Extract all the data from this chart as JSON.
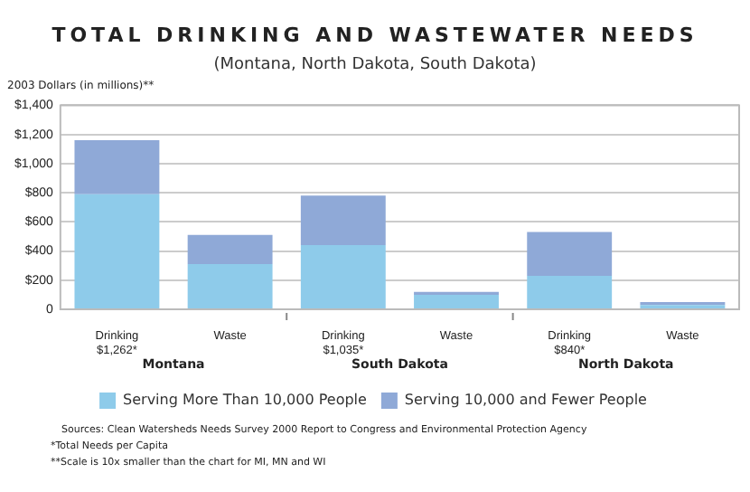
{
  "chart_data": {
    "type": "bar",
    "title": "TOTAL DRINKING AND WASTEWATER NEEDS",
    "subtitle": "(Montana, North Dakota, South Dakota)",
    "ylabel": "2003 Dollars (in millions)**",
    "categories": [
      "Drinking\n$1,262*",
      "Waste",
      "Drinking\n$1,035*",
      "Waste",
      "Drinking\n$840*",
      "Waste"
    ],
    "series": [
      {
        "name": "Serving More Than 10,000 People",
        "color": "#8ecbea",
        "values": [
          790,
          310,
          440,
          100,
          230,
          30
        ]
      },
      {
        "name": "Serving 10,000 and Fewer People",
        "color": "#8fa9d7",
        "values": [
          370,
          200,
          340,
          20,
          300,
          20
        ]
      }
    ],
    "stacked": true,
    "ylim": [
      0,
      1400
    ],
    "yticks": [
      0,
      {
        "value": 200,
        "label": "$200"
      },
      {
        "value": 400,
        "label": "$400"
      },
      {
        "value": 600,
        "label": "$600"
      },
      {
        "value": 800,
        "label": "$800"
      },
      {
        "value": 1000,
        "label": "$1,000"
      },
      {
        "value": 1200,
        "label": "$1,200"
      },
      {
        "value": 1400,
        "label": "$1,400"
      }
    ],
    "grid": "y",
    "legend": "bottom",
    "annotations": [
      "Montana",
      "South Dakota",
      "North Dakota",
      "Sources: Clean Watersheds Needs Survey 2000 Report to Congress and Environmental Protection Agency",
      "*Total Needs per Capita",
      "**Scale is 10x smaller than the chart for MI, MN and WI"
    ]
  }
}
